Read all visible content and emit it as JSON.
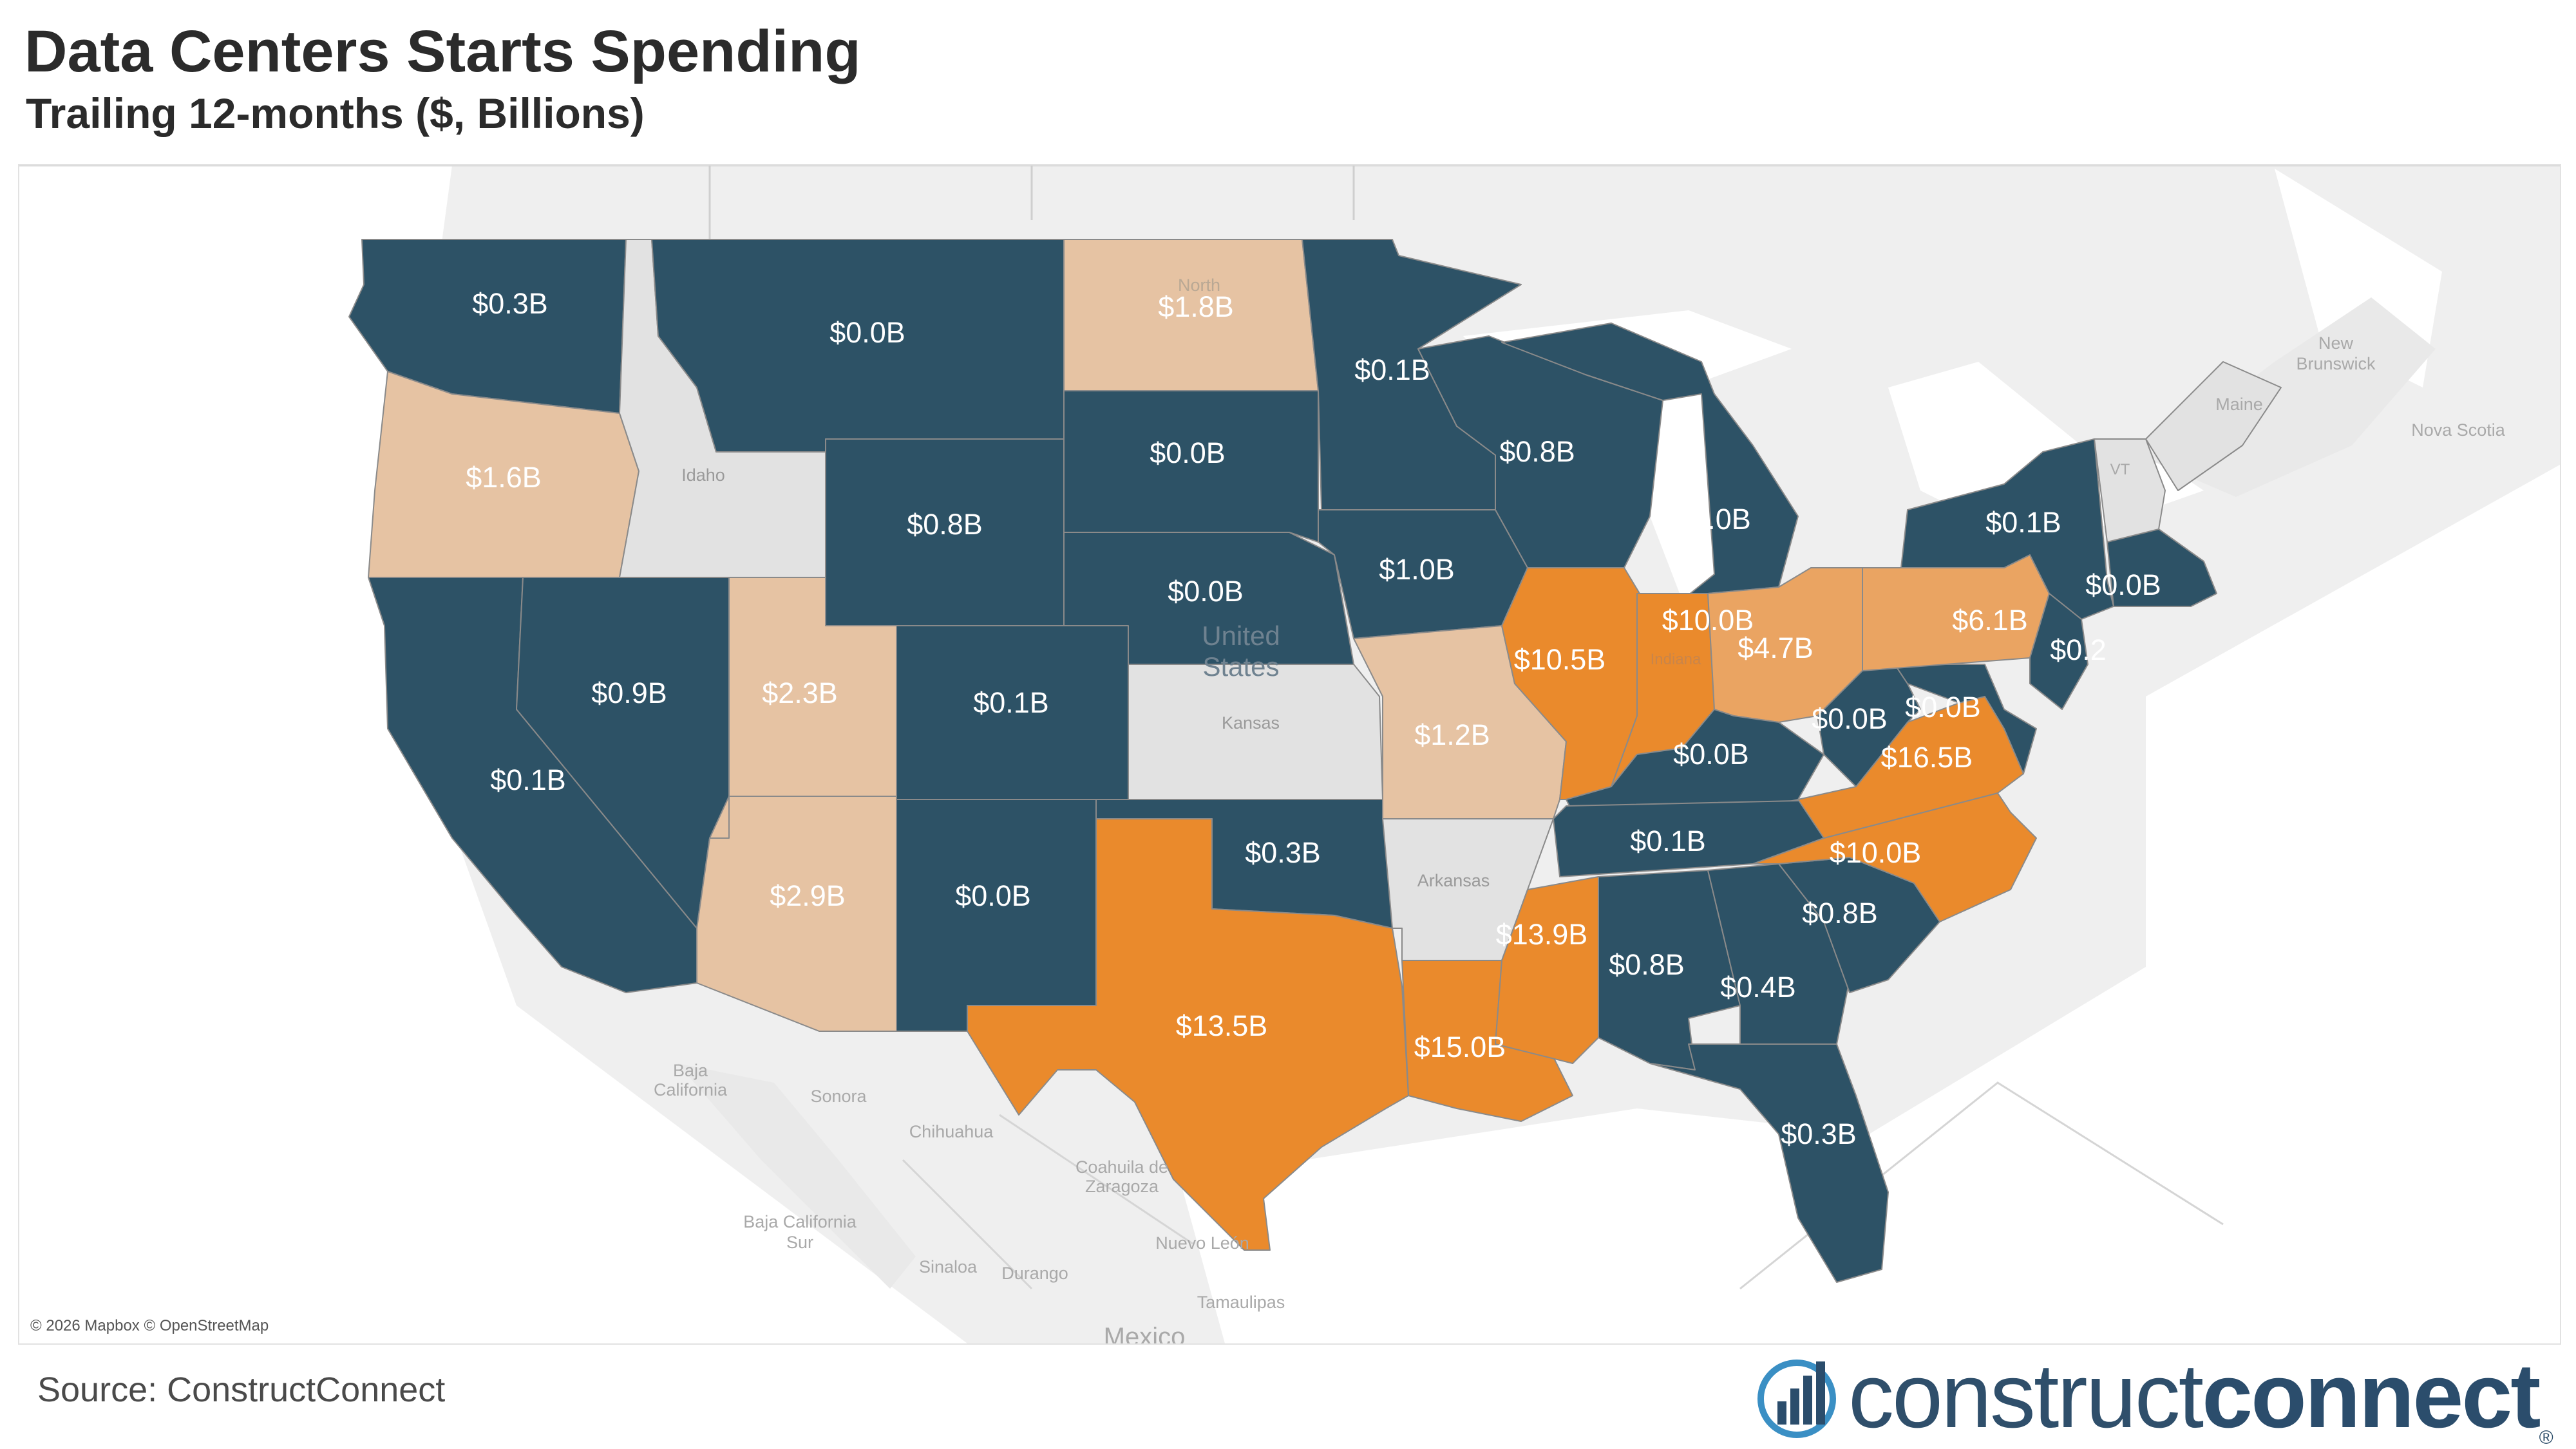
{
  "title": "Data Centers Starts Spending",
  "subtitle": "Trailing 12-months ($, Billions)",
  "colors": {
    "low": "#2d5266",
    "mid": "#e6c3a3",
    "midhigh": "#eaa462",
    "high": "#ea8a2c",
    "nodata": "#e2e2e2",
    "land": "#efefef",
    "water": "#ffffff"
  },
  "state_values": [
    {
      "key": "WA",
      "label": "$0.3B",
      "tier": "low"
    },
    {
      "key": "OR",
      "label": "$1.6B",
      "tier": "mid"
    },
    {
      "key": "CA",
      "label": "$0.1B",
      "tier": "low"
    },
    {
      "key": "NV",
      "label": "$0.9B",
      "tier": "low"
    },
    {
      "key": "MT",
      "label": "$0.0B",
      "tier": "low"
    },
    {
      "key": "WY",
      "label": "$0.8B",
      "tier": "low"
    },
    {
      "key": "UT",
      "label": "$2.3B",
      "tier": "mid"
    },
    {
      "key": "AZ",
      "label": "$2.9B",
      "tier": "mid"
    },
    {
      "key": "CO",
      "label": "$0.1B",
      "tier": "low"
    },
    {
      "key": "NM",
      "label": "$0.0B",
      "tier": "low"
    },
    {
      "key": "ND",
      "label": "$1.8B",
      "tier": "mid"
    },
    {
      "key": "SD",
      "label": "$0.0B",
      "tier": "low"
    },
    {
      "key": "NE",
      "label": "$0.0B",
      "tier": "low"
    },
    {
      "key": "OK",
      "label": "$0.3B",
      "tier": "low"
    },
    {
      "key": "TX",
      "label": "$13.5B",
      "tier": "high"
    },
    {
      "key": "MN",
      "label": "$0.1B",
      "tier": "low"
    },
    {
      "key": "IA",
      "label": "$1.0B",
      "tier": "low"
    },
    {
      "key": "MO",
      "label": "$1.2B",
      "tier": "mid"
    },
    {
      "key": "LA",
      "label": "$15.0B",
      "tier": "high"
    },
    {
      "key": "WI",
      "label": "$0.8B",
      "tier": "low"
    },
    {
      "key": "IL",
      "label": "$10.5B",
      "tier": "high"
    },
    {
      "key": "MI",
      "label": "$0.0B",
      "tier": "low"
    },
    {
      "key": "IN",
      "label": "$10.0B",
      "tier": "high"
    },
    {
      "key": "OH",
      "label": "$4.7B",
      "tier": "midhigh"
    },
    {
      "key": "KY",
      "label": "$0.0B",
      "tier": "low"
    },
    {
      "key": "TN",
      "label": "$0.1B",
      "tier": "low"
    },
    {
      "key": "MS",
      "label": "$13.9B",
      "tier": "high"
    },
    {
      "key": "AL",
      "label": "$0.8B",
      "tier": "low"
    },
    {
      "key": "GA",
      "label": "$0.4B",
      "tier": "low"
    },
    {
      "key": "FL",
      "label": "$0.3B",
      "tier": "low"
    },
    {
      "key": "SC",
      "label": "$0.8B",
      "tier": "low"
    },
    {
      "key": "NC",
      "label": "$10.0B",
      "tier": "high"
    },
    {
      "key": "VA",
      "label": "$16.5B",
      "tier": "high"
    },
    {
      "key": "WV",
      "label": "$0.0B",
      "tier": "low"
    },
    {
      "key": "MD",
      "label": "$0.0B",
      "tier": "low"
    },
    {
      "key": "PA",
      "label": "$6.1B",
      "tier": "midhigh"
    },
    {
      "key": "NY",
      "label": "$0.1B",
      "tier": "low"
    },
    {
      "key": "NJ",
      "label": "$0.2",
      "tier": "low"
    },
    {
      "key": "MA",
      "label": "$0.0B",
      "tier": "low"
    }
  ],
  "nodata_states": [
    {
      "key": "ID",
      "label": "Idaho"
    },
    {
      "key": "KS",
      "label": "Kansas"
    },
    {
      "key": "AR",
      "label": "Arkansas"
    }
  ],
  "basemap_labels": [
    {
      "key": "us1",
      "label": "United"
    },
    {
      "key": "us2",
      "label": "States"
    },
    {
      "key": "north",
      "label": "North"
    },
    {
      "key": "indiana",
      "label": "Indiana"
    },
    {
      "key": "vt",
      "label": "VT"
    },
    {
      "key": "nb1",
      "label": "New"
    },
    {
      "key": "nb2",
      "label": "Brunswick"
    },
    {
      "key": "maine",
      "label": "Maine"
    },
    {
      "key": "ns",
      "label": "Nova Scotia"
    },
    {
      "key": "bc1",
      "label": "Baja"
    },
    {
      "key": "bc2",
      "label": "California"
    },
    {
      "key": "sonora",
      "label": "Sonora"
    },
    {
      "key": "chihuahua",
      "label": "Chihuahua"
    },
    {
      "key": "coah1",
      "label": "Coahuila de"
    },
    {
      "key": "coah2",
      "label": "Zaragoza"
    },
    {
      "key": "bcs1",
      "label": "Baja California"
    },
    {
      "key": "bcs2",
      "label": "Sur"
    },
    {
      "key": "sinaloa",
      "label": "Sinaloa"
    },
    {
      "key": "durango",
      "label": "Durango"
    },
    {
      "key": "nl",
      "label": "Nuevo León"
    },
    {
      "key": "tamaulipas",
      "label": "Tamaulipas"
    },
    {
      "key": "mexico",
      "label": "Mexico"
    }
  ],
  "attribution": "© 2026 Mapbox © OpenStreetMap",
  "source": "Source: ConstructConnect",
  "logo": {
    "word1": "construct",
    "word2": "connect",
    "reg": "®"
  }
}
